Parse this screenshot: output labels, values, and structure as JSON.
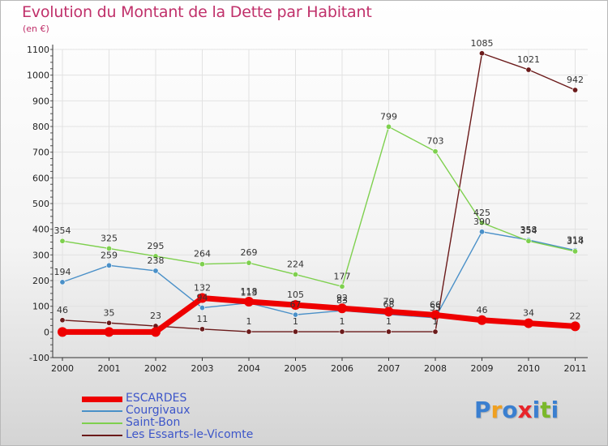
{
  "chart_data": {
    "type": "line",
    "title": "Evolution du Montant de la Dette par Habitant",
    "subtitle": "(en €)",
    "xlabel": "",
    "ylabel": "",
    "ylim": [
      -100,
      1100
    ],
    "yticks": [
      -100,
      0,
      100,
      200,
      300,
      400,
      500,
      600,
      700,
      800,
      900,
      1000,
      1100
    ],
    "x": [
      "2000",
      "2001",
      "2002",
      "2003",
      "2004",
      "2005",
      "2006",
      "2007",
      "2008",
      "2009",
      "2010",
      "2011"
    ],
    "grid": true,
    "legend_position": "bottom-left",
    "series": [
      {
        "name": "Les Essarts-le-Vicomte",
        "color": "#6b1a1a",
        "values": [
          46,
          35,
          23,
          11,
          1,
          1,
          1,
          1,
          1,
          1085,
          1021,
          942
        ]
      },
      {
        "name": "Courgivaux",
        "color": "#4a90c8",
        "values": [
          194,
          259,
          238,
          94,
          113,
          67,
          83,
          68,
          55,
          390,
          358,
          318
        ]
      },
      {
        "name": "Saint-Bon",
        "color": "#7ed04e",
        "values": [
          354,
          325,
          295,
          264,
          269,
          224,
          177,
          799,
          703,
          425,
          354,
          314
        ]
      },
      {
        "name": "ESCARDES",
        "color": "#ee0000",
        "values": [
          0,
          0,
          0,
          132,
          118,
          105,
          92,
          79,
          66,
          46,
          34,
          22
        ]
      }
    ],
    "data_labels": [
      {
        "series": "Les Essarts-le-Vicomte",
        "labels": [
          "46",
          "35",
          "23",
          "11",
          "1",
          "1",
          "1",
          "1",
          "1",
          "1085",
          "1021",
          "942"
        ]
      },
      {
        "series": "Courgivaux",
        "labels": [
          "194",
          "259",
          "238",
          "94",
          "113",
          "67",
          "83",
          "68",
          "55",
          "390",
          "358",
          "318"
        ]
      },
      {
        "series": "Saint-Bon",
        "labels": [
          "354",
          "325",
          "295",
          "264",
          "269",
          "224",
          "177",
          "799",
          "703",
          "425",
          "354",
          "314"
        ]
      },
      {
        "series": "ESCARDES",
        "labels": [
          "0",
          "0",
          "0",
          "132",
          "118",
          "105",
          "92",
          "79",
          "66",
          "46",
          "34",
          "22"
        ]
      }
    ]
  },
  "legend": {
    "items": [
      {
        "label": "ESCARDES",
        "color": "#ee0000",
        "thickness": "thick"
      },
      {
        "label": "Courgivaux",
        "color": "#4a90c8",
        "thickness": "thin"
      },
      {
        "label": "Saint-Bon",
        "color": "#7ed04e",
        "thickness": "thin"
      },
      {
        "label": "Les Essarts-le-Vicomte",
        "color": "#6b1a1a",
        "thickness": "thin"
      }
    ]
  },
  "brand": {
    "text": "Proxiti",
    "letter_colors": [
      "#3a7fd0",
      "#f0a020",
      "#3a7fd0",
      "#e8242a",
      "#3a7fd0",
      "#7ab82a",
      "#3a7fd0"
    ]
  }
}
